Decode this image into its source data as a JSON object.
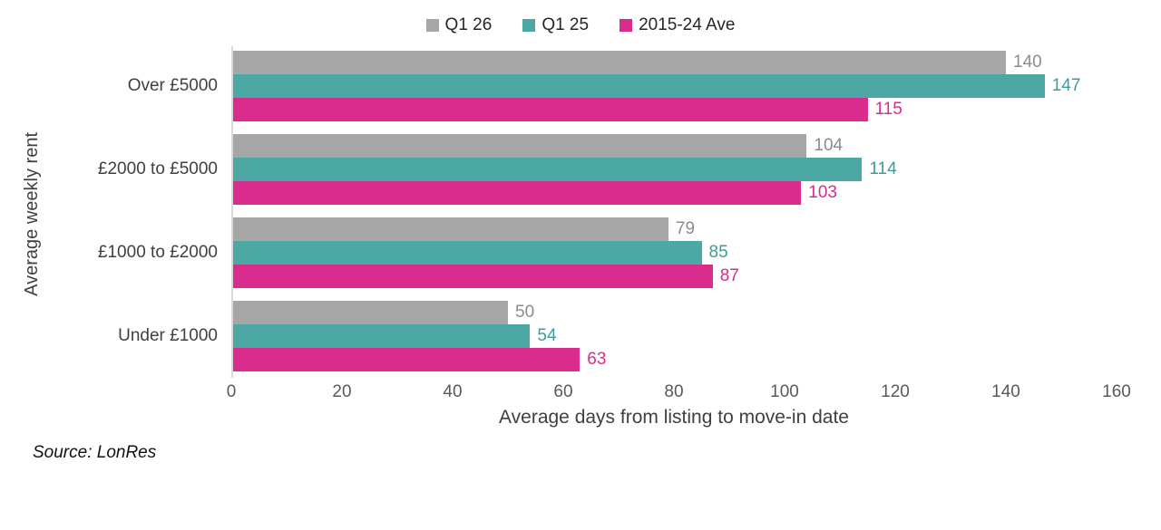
{
  "legend": [
    {
      "label": "Q1 26",
      "color": "#a6a6a6"
    },
    {
      "label": "Q1 25",
      "color": "#4ba8a5"
    },
    {
      "label": "2015-24 Ave",
      "color": "#d92c8c"
    }
  ],
  "chart_data": {
    "type": "bar",
    "orientation": "horizontal",
    "categories": [
      "Over £5000",
      "£2000 to £5000",
      "£1000 to £2000",
      "Under £1000"
    ],
    "series": [
      {
        "name": "Q1 26",
        "color": "#a6a6a6",
        "label_color": "#8c8c8c",
        "values": [
          140,
          104,
          79,
          50
        ]
      },
      {
        "name": "Q1 25",
        "color": "#4ba8a5",
        "label_color": "#3d9c99",
        "values": [
          147,
          114,
          85,
          54
        ]
      },
      {
        "name": "2015-24 Ave",
        "color": "#d92c8c",
        "label_color": "#d92c8c",
        "values": [
          115,
          103,
          87,
          63
        ]
      }
    ],
    "xlabel": "Average days from listing to move-in date",
    "ylabel": "Average weekly rent",
    "xlim": [
      0,
      160
    ],
    "xticks": [
      0,
      20,
      40,
      60,
      80,
      100,
      120,
      140,
      160
    ],
    "legend_position": "top",
    "grid": false,
    "data_labels": true
  },
  "source_note": "Source: LonRes"
}
